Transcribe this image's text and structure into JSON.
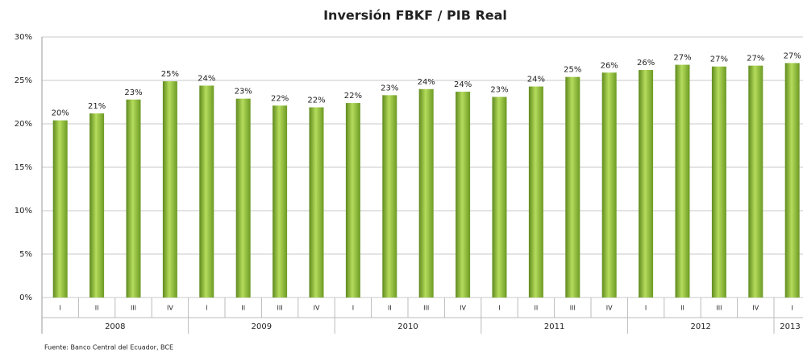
{
  "chart_data": {
    "type": "bar",
    "title": "Inversión FBKF / PIB Real",
    "categories": [
      "I",
      "II",
      "III",
      "IV",
      "I",
      "II",
      "III",
      "IV",
      "I",
      "II",
      "III",
      "IV",
      "I",
      "II",
      "III",
      "IV",
      "I",
      "II",
      "III",
      "IV",
      "I"
    ],
    "groups": [
      "2008",
      "2009",
      "2010",
      "2011",
      "2012",
      "2013"
    ],
    "values": [
      20.4,
      21.2,
      22.8,
      24.9,
      24.4,
      22.9,
      22.1,
      21.9,
      22.4,
      23.3,
      24.0,
      23.7,
      23.1,
      24.3,
      25.4,
      25.9,
      26.2,
      26.8,
      26.6,
      26.7,
      27.0
    ],
    "value_labels": [
      "20%",
      "21%",
      "23%",
      "25%",
      "24%",
      "23%",
      "22%",
      "22%",
      "22%",
      "23%",
      "24%",
      "24%",
      "23%",
      "24%",
      "25%",
      "26%",
      "26%",
      "27%",
      "27%",
      "27%",
      "27%"
    ],
    "color": "#8fbf3a",
    "ylim": [
      0,
      30
    ],
    "yticks": [
      {
        "value": 0,
        "label": "0%"
      },
      {
        "value": 5,
        "label": "5%"
      },
      {
        "value": 10,
        "label": "10%"
      },
      {
        "value": 15,
        "label": "15%"
      },
      {
        "value": 20,
        "label": "20%"
      },
      {
        "value": 25,
        "label": "25%"
      },
      {
        "value": 30,
        "label": "30%"
      }
    ],
    "grid": true,
    "source": "Fuente: Banco Central del Ecuador, BCE"
  }
}
